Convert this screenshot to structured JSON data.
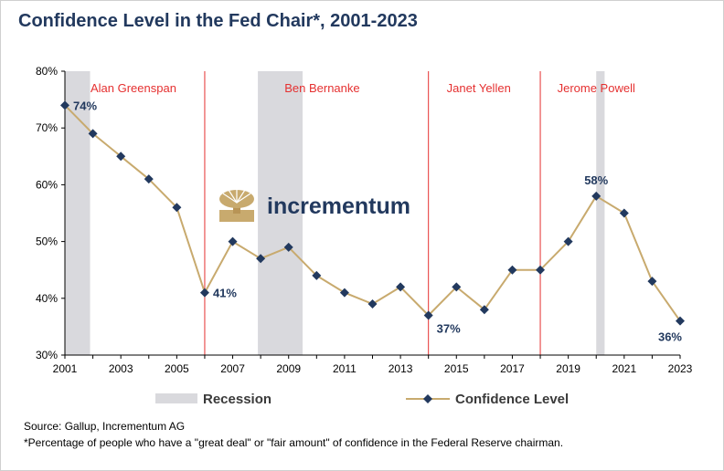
{
  "title": "Confidence Level in the Fed Chair*, 2001-2023",
  "logo_text": "incrementum",
  "footer": {
    "source": "Source: Gallup, Incrementum AG",
    "note": "*Percentage of people who have a \"great deal\" or \"fair amount\" of confidence in the Federal Reserve chairman."
  },
  "chart_data": {
    "type": "line",
    "xlim": [
      2001,
      2023
    ],
    "ylim": [
      30,
      80
    ],
    "y_ticks": [
      "30%",
      "40%",
      "50%",
      "60%",
      "70%",
      "80%"
    ],
    "x_ticks": [
      "2001",
      "2003",
      "2005",
      "2007",
      "2009",
      "2011",
      "2013",
      "2015",
      "2017",
      "2019",
      "2021",
      "2023"
    ],
    "series": [
      {
        "name": "Confidence Level",
        "color": "#c8aa6e",
        "marker_color": "#22395e",
        "x": [
          2001,
          2002,
          2003,
          2004,
          2005,
          2006,
          2007,
          2008,
          2009,
          2010,
          2011,
          2012,
          2013,
          2014,
          2015,
          2016,
          2017,
          2018,
          2019,
          2020,
          2021,
          2022,
          2023
        ],
        "values": [
          74,
          69,
          65,
          61,
          56,
          41,
          50,
          47,
          49,
          44,
          41,
          39,
          42,
          37,
          42,
          38,
          45,
          45,
          50,
          58,
          55,
          43,
          36
        ]
      }
    ],
    "data_labels": [
      {
        "x": 2001,
        "y": 74,
        "text": "74%",
        "pos": "right"
      },
      {
        "x": 2006,
        "y": 41,
        "text": "41%",
        "pos": "right"
      },
      {
        "x": 2014,
        "y": 37,
        "text": "37%",
        "pos": "right-below"
      },
      {
        "x": 2020,
        "y": 58,
        "text": "58%",
        "pos": "above"
      },
      {
        "x": 2023,
        "y": 36,
        "text": "36%",
        "pos": "left-below"
      }
    ],
    "recessions": [
      {
        "start": 2001.0,
        "end": 2001.9
      },
      {
        "start": 2007.9,
        "end": 2009.5
      },
      {
        "start": 2020.0,
        "end": 2020.3
      }
    ],
    "recession_color": "#d9d9dd",
    "chair_lines": [
      2006.0,
      2014.0,
      2018.0
    ],
    "chairs": [
      {
        "name": "Alan Greenspan",
        "center": 2003.45
      },
      {
        "name": "Ben Bernanke",
        "center": 2010.2
      },
      {
        "name": "Janet Yellen",
        "center": 2015.8
      },
      {
        "name": "Jerome Powell",
        "center": 2020.0
      }
    ],
    "chair_color": "#e53030",
    "legend": [
      "Recession",
      "Confidence Level"
    ],
    "legend_placement": "bottom",
    "grid": false
  }
}
